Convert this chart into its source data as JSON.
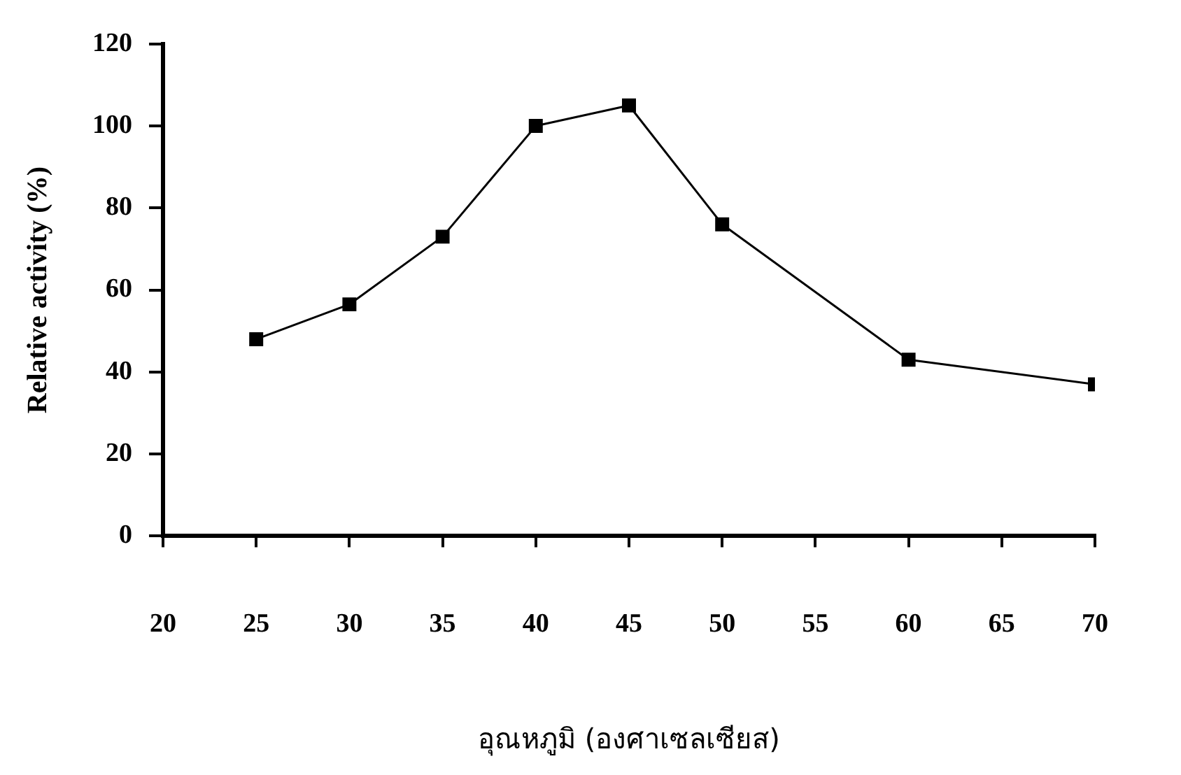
{
  "chart_data": {
    "type": "line",
    "xlabel": "อุณหภูมิ (องศาเซลเซียส)",
    "ylabel": "Relative activity (%)",
    "x": [
      25,
      30,
      35,
      40,
      45,
      50,
      60,
      70
    ],
    "series": [
      {
        "color": "#000000",
        "values": [
          48,
          56.5,
          73,
          100,
          105,
          76,
          43,
          37
        ]
      }
    ],
    "xlim": [
      20,
      70
    ],
    "xticks": [
      20,
      25,
      30,
      35,
      40,
      45,
      50,
      55,
      60,
      65,
      70
    ],
    "ylim": [
      0,
      120
    ],
    "yticks": [
      0,
      20,
      40,
      60,
      80,
      100,
      120
    ],
    "grid": false,
    "legend": false,
    "marker": "square",
    "line_style": "solid"
  }
}
